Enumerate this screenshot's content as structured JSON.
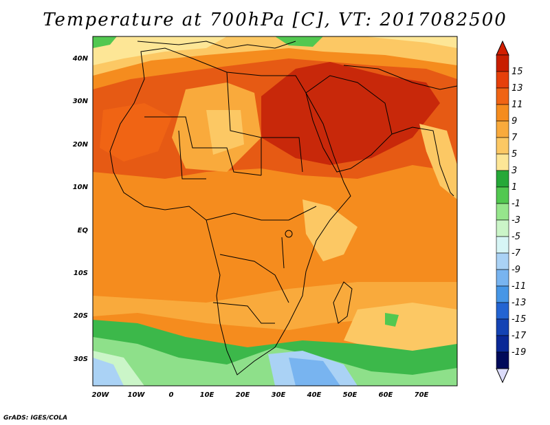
{
  "title": "Temperature at 700hPa [C], VT: 2017082500",
  "credit": "GrADS: IGES/COLA",
  "axes": {
    "lat_labels": [
      "40N",
      "30N",
      "20N",
      "10N",
      "EQ",
      "10S",
      "20S",
      "30S"
    ],
    "lon_labels": [
      "20W",
      "10W",
      "0",
      "10E",
      "20E",
      "30E",
      "40E",
      "50E",
      "60E",
      "70E"
    ]
  },
  "colorbar": {
    "labels": [
      "15",
      "13",
      "11",
      "9",
      "7",
      "5",
      "3",
      "1",
      "-1",
      "-3",
      "-5",
      "-7",
      "-9",
      "-11",
      "-13",
      "-15",
      "-17",
      "-19"
    ],
    "colors": [
      "#c81e00",
      "#e6400a",
      "#f06414",
      "#f58c1e",
      "#f9aa3c",
      "#fcc864",
      "#fde696",
      "#26a838",
      "#52c850",
      "#96e68c",
      "#cbf5c8",
      "#d7f5f5",
      "#aad2f5",
      "#78b4f0",
      "#4696e6",
      "#2364d2",
      "#1443b4",
      "#0a2896",
      "#000a5a"
    ],
    "overflow_top_color": "#d21e00",
    "underflow_bottom_color": "#dcdcfa"
  },
  "map_colors": {
    "hot": "#c8280a",
    "warm": "#e65a14",
    "orange": "#f58c1e",
    "lightorange": "#f9aa3c",
    "yellow": "#fcc864",
    "paleyellow": "#fde696",
    "green": "#3cb84a",
    "lightgreen": "#8ee08a",
    "palegreen": "#cbf5c8",
    "lightblue": "#aad2f5",
    "blue": "#78b4f0"
  }
}
